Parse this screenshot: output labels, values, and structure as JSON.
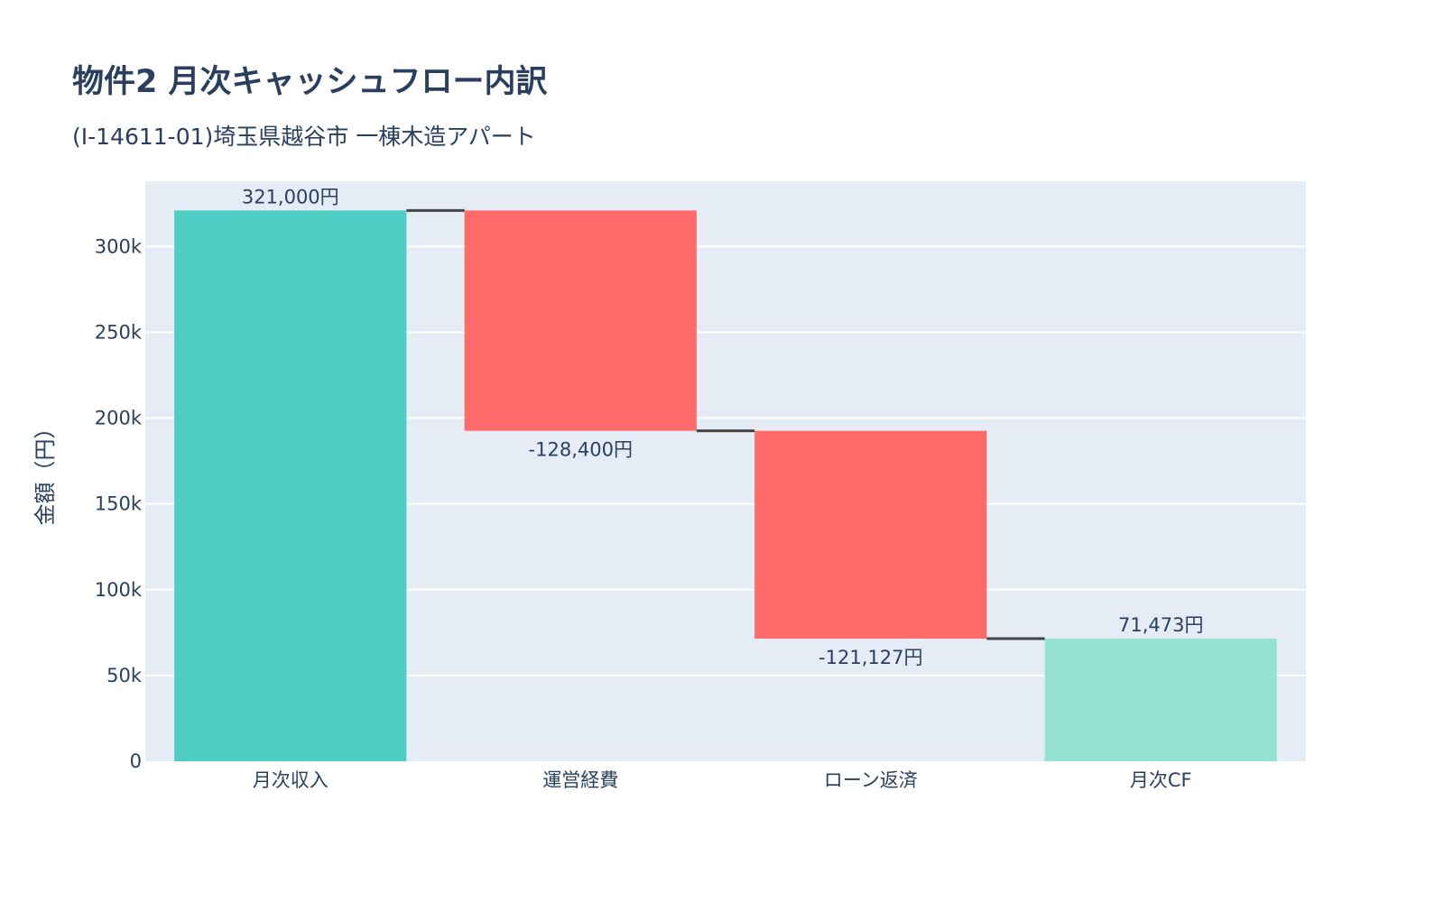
{
  "chart_data": {
    "type": "waterfall",
    "title": "物件2 月次キャッシュフロー内訳",
    "subtitle": "(I-14611-01)埼玉県越谷市 一棟木造アパート",
    "xlabel": "",
    "ylabel": "金額（円）",
    "categories": [
      "月次収入",
      "運営経費",
      "ローン返済",
      "月次CF"
    ],
    "measures": [
      "absolute",
      "relative",
      "relative",
      "total"
    ],
    "values": [
      321000,
      -128400,
      -121127,
      71473
    ],
    "text_labels": [
      "321,000円",
      "-128,400円",
      "-121,127円",
      "71,473円"
    ],
    "ylim": [
      0,
      338000
    ],
    "yticks": [
      0,
      50000,
      100000,
      150000,
      200000,
      250000,
      300000
    ],
    "ytick_labels": [
      "0",
      "50k",
      "100k",
      "150k",
      "200k",
      "250k",
      "300k"
    ],
    "grid": true,
    "colors": {
      "increasing": "#4ecdc4",
      "decreasing": "#ff6b6b",
      "total": "#95e1d3",
      "connector": "#444444",
      "plot_bg": "#e5ecf6"
    }
  }
}
